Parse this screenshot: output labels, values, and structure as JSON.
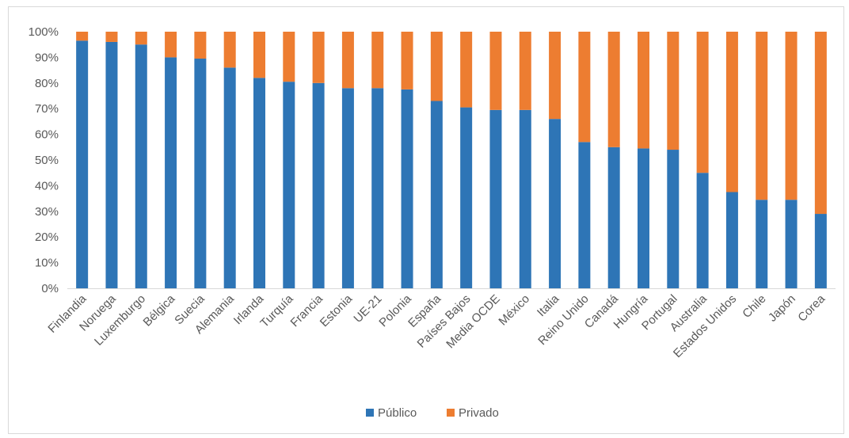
{
  "chart_data": {
    "type": "bar",
    "stacked": true,
    "stack_mode": "percent",
    "title": "",
    "xlabel": "",
    "ylabel": "",
    "ylim": [
      0,
      100
    ],
    "y_ticks": [
      "0%",
      "10%",
      "20%",
      "30%",
      "40%",
      "50%",
      "60%",
      "70%",
      "80%",
      "90%",
      "100%"
    ],
    "grid": false,
    "legend_position": "bottom",
    "categories": [
      "Finlandia",
      "Noruega",
      "Luxemburgo",
      "Bélgica",
      "Suecia",
      "Alemania",
      "Irlanda",
      "Turquía",
      "Francia",
      "Estonia",
      "UE-21",
      "Polonia",
      "España",
      "Países Bajos",
      "Media OCDE",
      "México",
      "Italia",
      "Reino Unido",
      "Canadá",
      "Hungría",
      "Portugal",
      "Australia",
      "Estados Unidos",
      "Chile",
      "Japón",
      "Corea"
    ],
    "series": [
      {
        "name": "Público",
        "color": "#2e75b6",
        "values": [
          96.5,
          96,
          95,
          90,
          89.5,
          86,
          82,
          80.5,
          80,
          78,
          78,
          77.5,
          73,
          70.5,
          69.5,
          69.5,
          66,
          57,
          55,
          54.5,
          54,
          45,
          37.5,
          34.5,
          34.5,
          29
        ]
      },
      {
        "name": "Privado",
        "color": "#ed7d31",
        "values": [
          3.5,
          4,
          5,
          10,
          10.5,
          14,
          18,
          19.5,
          20,
          22,
          22,
          22.5,
          27,
          29.5,
          30.5,
          30.5,
          34,
          43,
          45,
          45.5,
          46,
          55,
          62.5,
          65.5,
          65.5,
          71
        ]
      }
    ]
  }
}
